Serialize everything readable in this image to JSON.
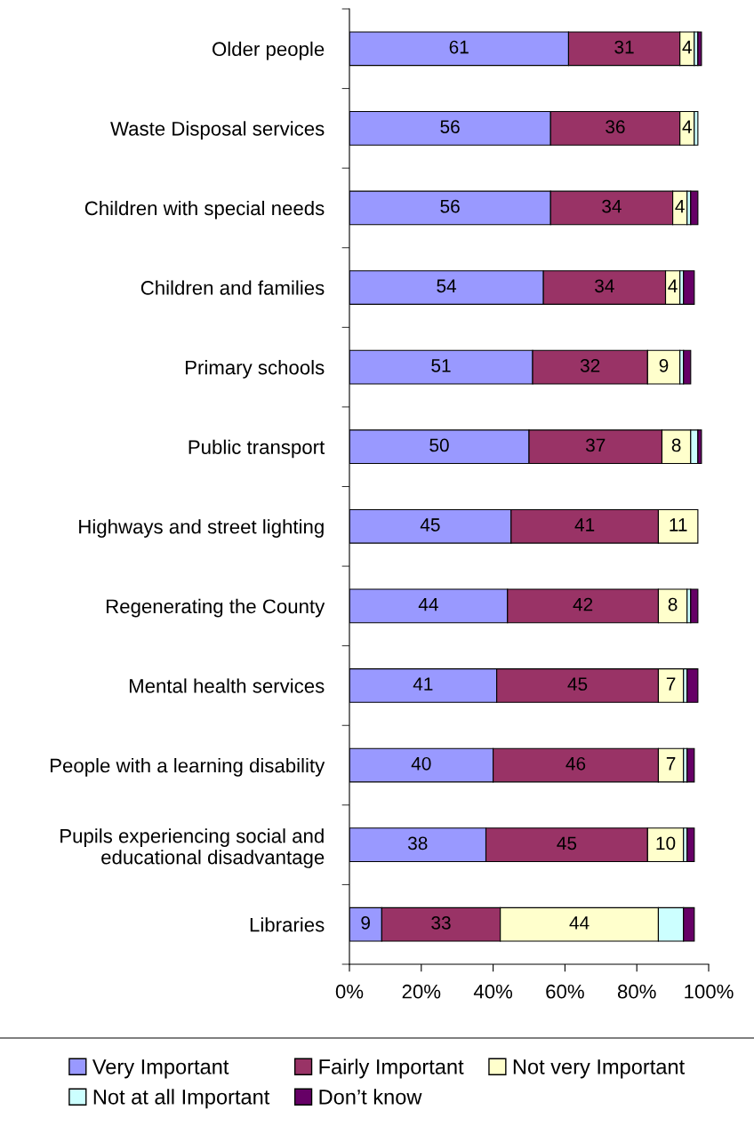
{
  "chart_data": {
    "type": "bar",
    "orientation": "horizontal",
    "stacked": true,
    "categories": [
      "Older people",
      "Waste Disposal services",
      "Children with special needs",
      "Children and families",
      "Primary schools",
      "Public transport",
      "Highways and street lighting",
      "Regenerating the County",
      "Mental health services",
      "People with a learning disability",
      "Pupils experiencing social and\neducational disadvantage",
      "Libraries"
    ],
    "series": [
      {
        "name": "Very Important",
        "color": "#9999ff",
        "values": [
          61,
          56,
          56,
          54,
          51,
          50,
          45,
          44,
          41,
          40,
          38,
          9
        ],
        "value_labels": [
          "61",
          "56",
          "56",
          "54",
          "51",
          "50",
          "45",
          "44",
          "41",
          "40",
          "38",
          "9"
        ]
      },
      {
        "name": "Fairly Important",
        "color": "#993366",
        "values": [
          31,
          36,
          34,
          34,
          32,
          37,
          41,
          42,
          45,
          46,
          45,
          33
        ],
        "value_labels": [
          "31",
          "36",
          "34",
          "34",
          "32",
          "37",
          "41",
          "42",
          "45",
          "46",
          "45",
          "33"
        ]
      },
      {
        "name": "Not very Important",
        "color": "#ffffcc",
        "values": [
          4,
          4,
          4,
          4,
          9,
          8,
          11,
          8,
          7,
          7,
          10,
          44
        ],
        "value_labels": [
          "4",
          "4",
          "4",
          "4",
          "9",
          "8",
          "11",
          "8",
          "7",
          "7",
          "10",
          "44"
        ]
      },
      {
        "name": "Not at all Important",
        "color": "#ccffff",
        "values": [
          1,
          1,
          1,
          1,
          1,
          2,
          null,
          1,
          1,
          1,
          1,
          7
        ]
      },
      {
        "name": "Don’t know",
        "color": "#660066",
        "values": [
          1,
          null,
          2,
          3,
          2,
          1,
          null,
          2,
          3,
          2,
          2,
          3
        ]
      }
    ],
    "xlim": [
      0,
      100
    ],
    "xticks": [
      {
        "value": 0,
        "label": "0%"
      },
      {
        "value": 20,
        "label": "20%"
      },
      {
        "value": 40,
        "label": "40%"
      },
      {
        "value": 60,
        "label": "60%"
      },
      {
        "value": 80,
        "label": "80%"
      },
      {
        "value": 100,
        "label": "100%"
      }
    ],
    "legend": "bottom",
    "grid": false
  }
}
